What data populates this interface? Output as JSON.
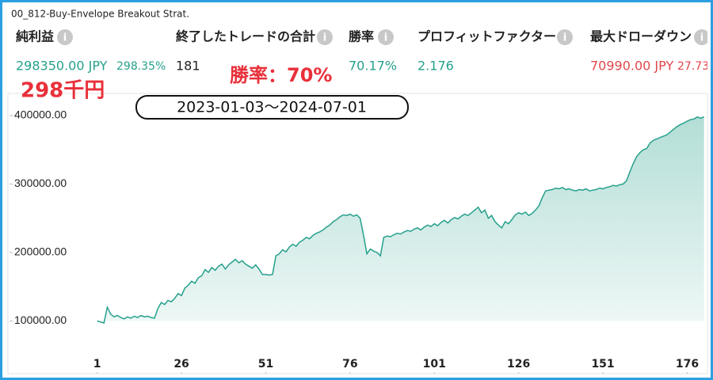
{
  "header": {
    "title": "00_812-Buy-Envelope Breakout Strat."
  },
  "metrics": [
    {
      "label": "純利益",
      "value": "298350.00 JPY",
      "sub": "298.35%"
    },
    {
      "label": "終了したトレードの合計",
      "value": "181"
    },
    {
      "label": "勝率",
      "value": "70.17%"
    },
    {
      "label": "プロフィットファクター",
      "value": "2.176"
    },
    {
      "label": "最大ドローダウン",
      "value": "70990.00 JPY",
      "sub": "27.73"
    }
  ],
  "annotations": {
    "profit": "298千円",
    "win_rate": "勝率：70%",
    "period": "2023-01-03～2024-07-01"
  },
  "chart_data": {
    "type": "area",
    "color": "#26a08c",
    "xlim": [
      -25,
      182
    ],
    "xticks": [
      1,
      26,
      51,
      76,
      101,
      126,
      151,
      176
    ],
    "ylim": [
      60000,
      430000
    ],
    "yticks": [
      {
        "value": 100000,
        "label": "100000.00"
      },
      {
        "value": 200000,
        "label": "200000.00"
      },
      {
        "value": 300000,
        "label": "300000.00"
      },
      {
        "value": 400000,
        "label": "400000.00"
      }
    ],
    "x": [
      1,
      2,
      3,
      4,
      5,
      6,
      7,
      8,
      9,
      10,
      11,
      12,
      13,
      14,
      15,
      16,
      17,
      18,
      19,
      20,
      21,
      22,
      23,
      24,
      25,
      26,
      27,
      28,
      29,
      30,
      31,
      32,
      33,
      34,
      35,
      36,
      37,
      38,
      39,
      40,
      41,
      42,
      43,
      44,
      45,
      46,
      47,
      48,
      49,
      50,
      51,
      52,
      53,
      54,
      55,
      56,
      57,
      58,
      59,
      60,
      61,
      62,
      63,
      64,
      65,
      66,
      67,
      68,
      69,
      70,
      71,
      72,
      73,
      74,
      75,
      76,
      77,
      78,
      79,
      80,
      81,
      82,
      83,
      84,
      85,
      86,
      87,
      88,
      89,
      90,
      91,
      92,
      93,
      94,
      95,
      96,
      97,
      98,
      99,
      100,
      101,
      102,
      103,
      104,
      105,
      106,
      107,
      108,
      109,
      110,
      111,
      112,
      113,
      114,
      115,
      116,
      117,
      118,
      119,
      120,
      121,
      122,
      123,
      124,
      125,
      126,
      127,
      128,
      129,
      130,
      131,
      132,
      133,
      134,
      135,
      136,
      137,
      138,
      139,
      140,
      141,
      142,
      143,
      144,
      145,
      146,
      147,
      148,
      149,
      150,
      151,
      152,
      153,
      154,
      155,
      156,
      157,
      158,
      159,
      160,
      161,
      162,
      163,
      164,
      165,
      166,
      167,
      168,
      169,
      170,
      171,
      172,
      173,
      174,
      175,
      176,
      177,
      178,
      179,
      180,
      181
    ],
    "values": [
      100000,
      98500,
      97000,
      120000,
      110000,
      106000,
      108000,
      105000,
      103000,
      106000,
      104000,
      107000,
      105000,
      108000,
      106000,
      107000,
      105000,
      104000,
      118000,
      127000,
      124000,
      130000,
      128000,
      133000,
      140000,
      137000,
      148000,
      152000,
      158000,
      155000,
      163000,
      166000,
      175000,
      171000,
      178000,
      174000,
      180000,
      183000,
      176000,
      182000,
      186000,
      190000,
      185000,
      188000,
      183000,
      180000,
      177000,
      182000,
      176000,
      168000,
      168000,
      167000,
      168000,
      195000,
      198000,
      204000,
      201000,
      208000,
      212000,
      209000,
      215000,
      218000,
      222000,
      220000,
      225000,
      228000,
      230000,
      233000,
      237000,
      240000,
      245000,
      248000,
      252000,
      255000,
      254000,
      256000,
      253000,
      255000,
      250000,
      225000,
      198000,
      205000,
      202000,
      200000,
      195000,
      222000,
      224000,
      223000,
      226000,
      228000,
      227000,
      230000,
      232000,
      231000,
      234000,
      236000,
      233000,
      237000,
      240000,
      238000,
      242000,
      239000,
      244000,
      247000,
      243000,
      248000,
      251000,
      249000,
      253000,
      256000,
      254000,
      258000,
      262000,
      266000,
      258000,
      262000,
      250000,
      254000,
      245000,
      240000,
      236000,
      245000,
      242000,
      248000,
      255000,
      258000,
      256000,
      259000,
      254000,
      257000,
      262000,
      268000,
      280000,
      290000,
      291000,
      292000,
      294000,
      293000,
      295000,
      292000,
      293000,
      291000,
      290000,
      292000,
      291000,
      293000,
      290000,
      291000,
      292000,
      294000,
      293000,
      295000,
      296000,
      298000,
      297000,
      299000,
      300000,
      305000,
      318000,
      330000,
      340000,
      346000,
      350000,
      352000,
      360000,
      364000,
      366000,
      368000,
      370000,
      372000,
      376000,
      380000,
      384000,
      387000,
      389000,
      392000,
      394000,
      395000,
      398000,
      396000,
      398350
    ]
  }
}
